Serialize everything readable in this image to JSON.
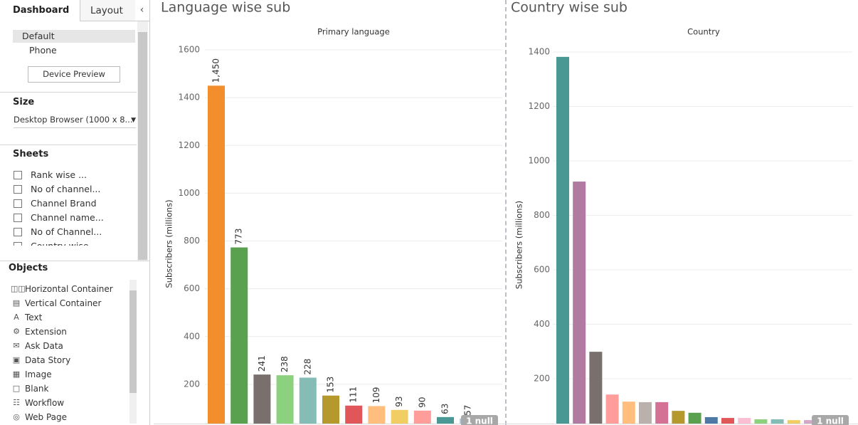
{
  "sidebar": {
    "tabs": [
      "Dashboard",
      "Layout"
    ],
    "devices": [
      "Default",
      "Phone"
    ],
    "device_preview": "Device Preview",
    "size_heading": "Size",
    "size_value": "Desktop Browser (1000 x 8...",
    "sheets_heading": "Sheets",
    "sheets": [
      "Rank wise ...",
      "No of channel...",
      "Channel Brand",
      "Channel name...",
      "No of Channel...",
      "Country wise ..."
    ],
    "objects_heading": "Objects",
    "objects": [
      "Horizontal Container",
      "Vertical Container",
      "Text",
      "Extension",
      "Ask Data",
      "Data Story",
      "Image",
      "Blank",
      "Workflow",
      "Web Page"
    ]
  },
  "chart_data": [
    {
      "type": "bar",
      "title": "Language wise sub",
      "header": "Primary language",
      "y_label": "Subscribers (millions)",
      "values": [
        1450,
        773,
        241,
        238,
        228,
        153,
        111,
        109,
        93,
        90,
        63,
        57
      ],
      "value_labels": [
        "1,450",
        "773",
        "241",
        "238",
        "228",
        "153",
        "111",
        "109",
        "93",
        "90",
        "63",
        "57"
      ],
      "colors": [
        "#f28e2b",
        "#59a14f",
        "#79706e",
        "#8cd17d",
        "#86bcb6",
        "#b6992d",
        "#e15759",
        "#ffbe7d",
        "#f1ce63",
        "#ff9d9a",
        "#499894",
        "#a0cbe8"
      ],
      "ylim": [
        0,
        1600
      ],
      "yticks": [
        200,
        400,
        600,
        800,
        1000,
        1200,
        1400,
        1600
      ],
      "grid": true,
      "annotation": "1 null"
    },
    {
      "type": "bar",
      "title": "Country wise sub",
      "header": "Country",
      "y_label": "Subscribers (millions)",
      "values": [
        1382,
        924,
        299,
        142,
        116,
        114,
        114,
        82,
        75,
        59,
        56,
        56,
        51,
        51,
        48,
        48
      ],
      "colors": [
        "#499894",
        "#b07aa1",
        "#79706e",
        "#ff9d9a",
        "#ffbe7d",
        "#bab0ac",
        "#d37295",
        "#b6992d",
        "#59a14f",
        "#4e79a7",
        "#e15759",
        "#fabfd2",
        "#8cd17d",
        "#86bcb6",
        "#f1ce63",
        "#d4a6c8"
      ],
      "ylim": [
        0,
        1400
      ],
      "yticks": [
        200,
        400,
        600,
        800,
        1000,
        1200,
        1400
      ],
      "grid": true,
      "annotation": "1 null"
    }
  ]
}
